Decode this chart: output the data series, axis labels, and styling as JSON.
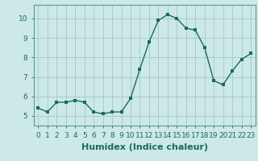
{
  "x": [
    0,
    1,
    2,
    3,
    4,
    5,
    6,
    7,
    8,
    9,
    10,
    11,
    12,
    13,
    14,
    15,
    16,
    17,
    18,
    19,
    20,
    21,
    22,
    23
  ],
  "y": [
    5.4,
    5.2,
    5.7,
    5.7,
    5.8,
    5.7,
    5.2,
    5.1,
    5.2,
    5.2,
    5.9,
    7.4,
    8.8,
    9.9,
    10.2,
    10.0,
    9.5,
    9.4,
    8.5,
    6.8,
    6.6,
    7.3,
    7.9,
    8.2
  ],
  "line_color": "#1a6b5a",
  "marker": "s",
  "marker_size": 2.5,
  "bg_color": "#cce8e8",
  "grid_color": "#aacccc",
  "xlabel": "Humidex (Indice chaleur)",
  "xlabel_fontsize": 8,
  "tick_fontsize": 6.5,
  "ylim": [
    4.5,
    10.7
  ],
  "xlim": [
    -0.5,
    23.5
  ],
  "yticks": [
    5,
    6,
    7,
    8,
    9,
    10
  ],
  "xticks": [
    0,
    1,
    2,
    3,
    4,
    5,
    6,
    7,
    8,
    9,
    10,
    11,
    12,
    13,
    14,
    15,
    16,
    17,
    18,
    19,
    20,
    21,
    22,
    23
  ]
}
